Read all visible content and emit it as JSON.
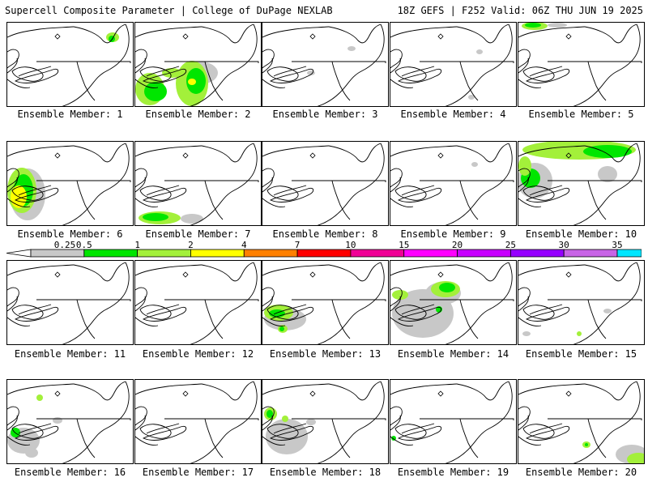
{
  "header": {
    "title_left": "Supercell Composite Parameter | College of DuPage NEXLAB",
    "title_right": "18Z GEFS | F252 Valid: 06Z THU JUN 19 2025"
  },
  "scale": {
    "ticks": [
      "0.25",
      "0.5",
      "1",
      "2",
      "4",
      "7",
      "10",
      "15",
      "20",
      "25",
      "30",
      "35"
    ],
    "colors": [
      "#c8c8c8",
      "#00e600",
      "#a3f03a",
      "#ffff00",
      "#ff8000",
      "#ff0000",
      "#f00096",
      "#ff00ff",
      "#c800ff",
      "#9600ff",
      "#c864e6",
      "#00e6ff"
    ]
  },
  "panels": [
    {
      "label": "Ensemble Member: 1",
      "blobs": [
        {
          "c": "#a3f03a",
          "x": 130,
          "y": 18,
          "rx": 8,
          "ry": 6
        },
        {
          "c": "#00e600",
          "x": 129,
          "y": 20,
          "rx": 4,
          "ry": 4
        }
      ]
    },
    {
      "label": "Ensemble Member: 2",
      "blobs": [
        {
          "c": "#c8c8c8",
          "x": 80,
          "y": 62,
          "rx": 22,
          "ry": 14
        },
        {
          "c": "#a3f03a",
          "x": 18,
          "y": 82,
          "rx": 18,
          "ry": 20
        },
        {
          "c": "#00e600",
          "x": 25,
          "y": 85,
          "rx": 14,
          "ry": 12
        },
        {
          "c": "#a3f03a",
          "x": 70,
          "y": 75,
          "rx": 20,
          "ry": 28
        },
        {
          "c": "#00e600",
          "x": 75,
          "y": 72,
          "rx": 12,
          "ry": 16
        },
        {
          "c": "#ffff00",
          "x": 70,
          "y": 73,
          "rx": 5,
          "ry": 4
        },
        {
          "c": "#a3f03a",
          "x": 45,
          "y": 62,
          "rx": 12,
          "ry": 6
        }
      ]
    },
    {
      "label": "Ensemble Member: 3",
      "blobs": [
        {
          "c": "#c8c8c8",
          "x": 110,
          "y": 32,
          "rx": 5,
          "ry": 3
        },
        {
          "c": "#c8c8c8",
          "x": 60,
          "y": 62,
          "rx": 5,
          "ry": 3
        }
      ]
    },
    {
      "label": "Ensemble Member: 4",
      "blobs": [
        {
          "c": "#c8c8c8",
          "x": 110,
          "y": 36,
          "rx": 4,
          "ry": 3
        },
        {
          "c": "#c8c8c8",
          "x": 100,
          "y": 92,
          "rx": 4,
          "ry": 3
        }
      ]
    },
    {
      "label": "Ensemble Member: 5",
      "blobs": [
        {
          "c": "#a3f03a",
          "x": 20,
          "y": 4,
          "rx": 16,
          "ry": 5
        },
        {
          "c": "#00e600",
          "x": 18,
          "y": 3,
          "rx": 10,
          "ry": 3
        },
        {
          "c": "#c8c8c8",
          "x": 48,
          "y": 3,
          "rx": 12,
          "ry": 3
        }
      ]
    },
    {
      "label": "Ensemble Member: 6",
      "blobs": [
        {
          "c": "#c8c8c8",
          "x": 25,
          "y": 65,
          "rx": 22,
          "ry": 32
        },
        {
          "c": "#a3f03a",
          "x": 18,
          "y": 60,
          "rx": 18,
          "ry": 28
        },
        {
          "c": "#00e600",
          "x": 20,
          "y": 60,
          "rx": 12,
          "ry": 20
        },
        {
          "c": "#ffff00",
          "x": 14,
          "y": 68,
          "rx": 10,
          "ry": 14
        }
      ]
    },
    {
      "label": "Ensemble Member: 7",
      "blobs": [
        {
          "c": "#a3f03a",
          "x": 30,
          "y": 94,
          "rx": 26,
          "ry": 8
        },
        {
          "c": "#00e600",
          "x": 25,
          "y": 93,
          "rx": 16,
          "ry": 5
        },
        {
          "c": "#c8c8c8",
          "x": 70,
          "y": 95,
          "rx": 14,
          "ry": 6
        }
      ]
    },
    {
      "label": "Ensemble Member: 8",
      "blobs": []
    },
    {
      "label": "Ensemble Member: 9",
      "blobs": [
        {
          "c": "#c8c8c8",
          "x": 104,
          "y": 28,
          "rx": 4,
          "ry": 3
        }
      ]
    },
    {
      "label": "Ensemble Member: 10",
      "blobs": [
        {
          "c": "#a3f03a",
          "x": 75,
          "y": 10,
          "rx": 70,
          "ry": 12
        },
        {
          "c": "#00e600",
          "x": 110,
          "y": 12,
          "rx": 30,
          "ry": 8
        },
        {
          "c": "#c8c8c8",
          "x": 20,
          "y": 48,
          "rx": 22,
          "ry": 22
        },
        {
          "c": "#00e600",
          "x": 15,
          "y": 45,
          "rx": 12,
          "ry": 12
        },
        {
          "c": "#c8c8c8",
          "x": 110,
          "y": 40,
          "rx": 12,
          "ry": 10
        },
        {
          "c": "#a3f03a",
          "x": 8,
          "y": 30,
          "rx": 8,
          "ry": 12
        }
      ]
    },
    {
      "label": "Ensemble Member: 11",
      "blobs": []
    },
    {
      "label": "Ensemble Member: 12",
      "blobs": []
    },
    {
      "label": "Ensemble Member: 13",
      "blobs": [
        {
          "c": "#c8c8c8",
          "x": 28,
          "y": 72,
          "rx": 26,
          "ry": 14
        },
        {
          "c": "#a3f03a",
          "x": 20,
          "y": 64,
          "rx": 18,
          "ry": 10
        },
        {
          "c": "#00e600",
          "x": 18,
          "y": 65,
          "rx": 10,
          "ry": 5
        },
        {
          "c": "#a3f03a",
          "x": 25,
          "y": 84,
          "rx": 6,
          "ry": 5
        },
        {
          "c": "#00e600",
          "x": 24,
          "y": 84,
          "rx": 3,
          "ry": 3
        }
      ]
    },
    {
      "label": "Ensemble Member: 14",
      "blobs": [
        {
          "c": "#c8c8c8",
          "x": 40,
          "y": 65,
          "rx": 38,
          "ry": 30
        },
        {
          "c": "#c8c8c8",
          "x": 65,
          "y": 40,
          "rx": 22,
          "ry": 14
        },
        {
          "c": "#a3f03a",
          "x": 68,
          "y": 35,
          "rx": 18,
          "ry": 10
        },
        {
          "c": "#00e600",
          "x": 70,
          "y": 33,
          "rx": 10,
          "ry": 6
        },
        {
          "c": "#a3f03a",
          "x": 12,
          "y": 42,
          "rx": 10,
          "ry": 6
        },
        {
          "c": "#00e600",
          "x": 60,
          "y": 60,
          "rx": 4,
          "ry": 4
        }
      ]
    },
    {
      "label": "Ensemble Member: 15",
      "blobs": [
        {
          "c": "#c8c8c8",
          "x": 110,
          "y": 62,
          "rx": 5,
          "ry": 3
        },
        {
          "c": "#a3f03a",
          "x": 75,
          "y": 90,
          "rx": 3,
          "ry": 3
        },
        {
          "c": "#c8c8c8",
          "x": 10,
          "y": 90,
          "rx": 5,
          "ry": 3
        }
      ]
    },
    {
      "label": "Ensemble Member: 16",
      "blobs": [
        {
          "c": "#a3f03a",
          "x": 40,
          "y": 22,
          "rx": 4,
          "ry": 4
        },
        {
          "c": "#c8c8c8",
          "x": 20,
          "y": 75,
          "rx": 20,
          "ry": 16
        },
        {
          "c": "#00e600",
          "x": 10,
          "y": 65,
          "rx": 6,
          "ry": 6
        },
        {
          "c": "#c8c8c8",
          "x": 62,
          "y": 50,
          "rx": 6,
          "ry": 4
        },
        {
          "c": "#c8c8c8",
          "x": 30,
          "y": 90,
          "rx": 8,
          "ry": 6
        }
      ]
    },
    {
      "label": "Ensemble Member: 17",
      "blobs": []
    },
    {
      "label": "Ensemble Member: 18",
      "blobs": [
        {
          "c": "#c8c8c8",
          "x": 30,
          "y": 70,
          "rx": 26,
          "ry": 22
        },
        {
          "c": "#a3f03a",
          "x": 10,
          "y": 42,
          "rx": 8,
          "ry": 8
        },
        {
          "c": "#00e600",
          "x": 9,
          "y": 42,
          "rx": 4,
          "ry": 5
        },
        {
          "c": "#a3f03a",
          "x": 28,
          "y": 48,
          "rx": 4,
          "ry": 4
        },
        {
          "c": "#c8c8c8",
          "x": 60,
          "y": 52,
          "rx": 6,
          "ry": 4
        }
      ]
    },
    {
      "label": "Ensemble Member: 19",
      "blobs": [
        {
          "c": "#00e600",
          "x": 4,
          "y": 72,
          "rx": 3,
          "ry": 3
        }
      ]
    },
    {
      "label": "Ensemble Member: 20",
      "blobs": [
        {
          "c": "#a3f03a",
          "x": 84,
          "y": 80,
          "rx": 5,
          "ry": 4
        },
        {
          "c": "#00e600",
          "x": 84,
          "y": 80,
          "rx": 2,
          "ry": 2
        },
        {
          "c": "#c8c8c8",
          "x": 140,
          "y": 92,
          "rx": 20,
          "ry": 12
        },
        {
          "c": "#a3f03a",
          "x": 148,
          "y": 98,
          "rx": 14,
          "ry": 8
        }
      ]
    }
  ]
}
